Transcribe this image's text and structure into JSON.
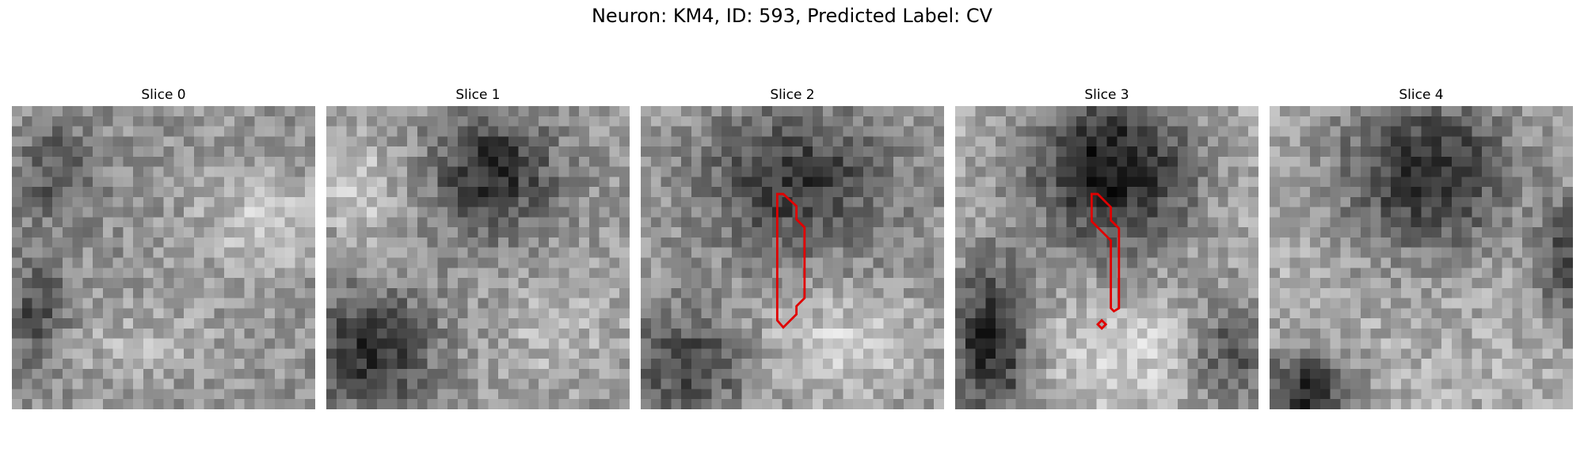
{
  "figure": {
    "title": "Neuron: KM4, ID: 593, Predicted Label: CV"
  },
  "panels": [
    {
      "title": "Slice 0"
    },
    {
      "title": "Slice 1"
    },
    {
      "title": "Slice 2"
    },
    {
      "title": "Slice 3"
    },
    {
      "title": "Slice 4"
    }
  ],
  "colors": {
    "contour": "#e00000"
  }
}
